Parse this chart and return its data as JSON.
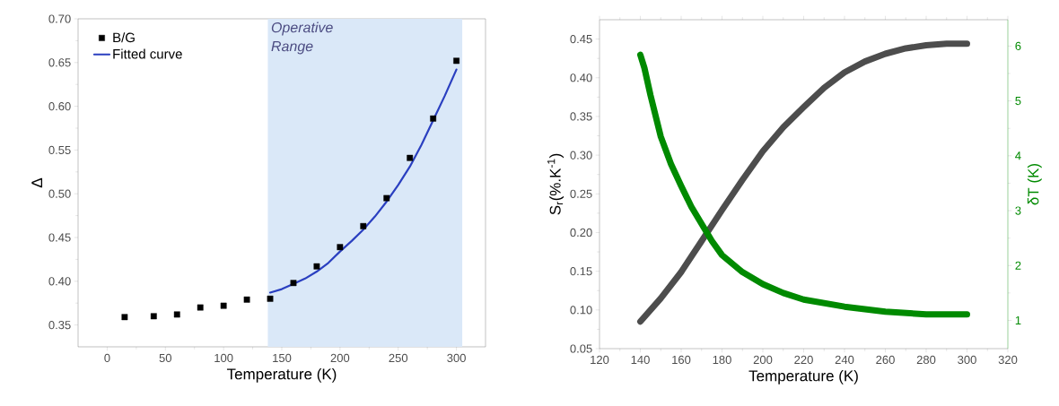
{
  "chart_data": [
    {
      "type": "scatter",
      "xlabel": "Temperature (K)",
      "ylabel": "Δ",
      "xlim": [
        -25,
        325
      ],
      "ylim": [
        0.325,
        0.7
      ],
      "xticks": [
        0,
        50,
        100,
        150,
        200,
        250,
        300
      ],
      "yticks": [
        {
          "value": 0.35,
          "label": "0.35"
        },
        {
          "value": 0.4,
          "label": "0.40"
        },
        {
          "value": 0.45,
          "label": "0.45"
        },
        {
          "value": 0.5,
          "label": "0.50"
        },
        {
          "value": 0.55,
          "label": "0.55"
        },
        {
          "value": 0.6,
          "label": "0.60"
        },
        {
          "value": 0.65,
          "label": "0.65"
        },
        {
          "value": 0.7,
          "label": "0.70"
        }
      ],
      "bands": [
        {
          "axis": "x",
          "from": 138,
          "to": 305,
          "label": "Operative Range",
          "color": "#dae8f8"
        }
      ],
      "legend": "top left",
      "series": [
        {
          "name": "B/G",
          "type": "scatter",
          "marker": "square",
          "color": "#000000",
          "x": [
            15,
            40,
            60,
            80,
            100,
            120,
            140,
            160,
            180,
            200,
            220,
            240,
            260,
            280,
            300
          ],
          "values": [
            0.359,
            0.36,
            0.362,
            0.37,
            0.372,
            0.379,
            0.38,
            0.398,
            0.417,
            0.439,
            0.463,
            0.495,
            0.541,
            0.586,
            0.652
          ]
        },
        {
          "name": "Fitted curve",
          "type": "line",
          "color": "#2a3fc0",
          "x": [
            140,
            150,
            160,
            170,
            180,
            190,
            200,
            210,
            220,
            230,
            240,
            250,
            260,
            270,
            280,
            290,
            300
          ],
          "values": [
            0.387,
            0.391,
            0.397,
            0.403,
            0.411,
            0.421,
            0.434,
            0.446,
            0.459,
            0.474,
            0.491,
            0.51,
            0.531,
            0.556,
            0.584,
            0.612,
            0.642
          ]
        }
      ]
    },
    {
      "type": "line",
      "xlabel": "Temperature (K)",
      "ylabel": "S$_{r}$(%.K$^{-1}$)",
      "y2label": "δT (K)",
      "xlim": [
        120,
        320
      ],
      "ylim": [
        0.05,
        0.475
      ],
      "y2lim": [
        0.485,
        6.48
      ],
      "xticks": [
        120,
        140,
        160,
        180,
        200,
        220,
        240,
        260,
        280,
        300,
        320
      ],
      "yticks": [
        {
          "value": 0.05,
          "label": "0.05"
        },
        {
          "value": 0.1,
          "label": "0.10"
        },
        {
          "value": 0.15,
          "label": "0.15"
        },
        {
          "value": 0.2,
          "label": "0.20"
        },
        {
          "value": 0.25,
          "label": "0.25"
        },
        {
          "value": 0.3,
          "label": "0.30"
        },
        {
          "value": 0.35,
          "label": "0.35"
        },
        {
          "value": 0.4,
          "label": "0.40"
        },
        {
          "value": 0.45,
          "label": "0.45"
        }
      ],
      "y2ticks": [
        1,
        2,
        3,
        4,
        5,
        6
      ],
      "series": [
        {
          "color": "#4d4d4d",
          "x": [
            140,
            150,
            160,
            170,
            180,
            190,
            200,
            210,
            220,
            230,
            240,
            250,
            260,
            270,
            280,
            290,
            300
          ],
          "values": [
            0.085,
            0.115,
            0.149,
            0.189,
            0.229,
            0.268,
            0.305,
            0.336,
            0.362,
            0.387,
            0.407,
            0.421,
            0.431,
            0.438,
            0.442,
            0.444,
            0.444
          ]
        },
        {
          "axis": "y2",
          "color": "#008a00",
          "x": [
            140,
            142,
            145,
            150,
            155,
            160,
            165,
            170,
            175,
            180,
            190,
            200,
            210,
            220,
            240,
            260,
            280,
            300
          ],
          "values": [
            5.84,
            5.6,
            5.1,
            4.35,
            3.85,
            3.45,
            3.07,
            2.76,
            2.45,
            2.19,
            1.88,
            1.66,
            1.5,
            1.38,
            1.25,
            1.16,
            1.11,
            1.11
          ]
        }
      ]
    }
  ]
}
